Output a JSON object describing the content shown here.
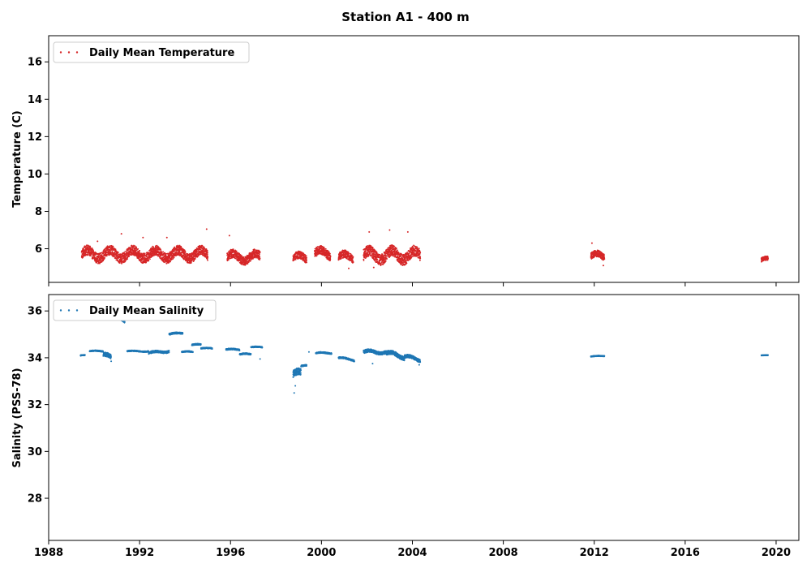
{
  "figure": {
    "title": "Station A1 - 400 m"
  },
  "chart_data": [
    {
      "type": "scatter",
      "id": "temperature",
      "ylabel": "Temperature (C)",
      "xlabel": "",
      "xlim": [
        1988.0,
        2021.0
      ],
      "ylim": [
        4.2,
        17.4
      ],
      "xticks": [
        1988,
        1992,
        1996,
        2000,
        2004,
        2008,
        2012,
        2016,
        2020
      ],
      "yticks": [
        6,
        8,
        10,
        12,
        14,
        16
      ],
      "show_xtick_labels": false,
      "grid": false,
      "legend": {
        "position": "upper-left",
        "entries": [
          "Daily Mean Temperature"
        ]
      },
      "series": [
        {
          "name": "Daily Mean Temperature",
          "color": "#d62728",
          "marker": "dot",
          "segments": [
            {
              "start": 1989.45,
              "end": 1995.0,
              "base": 5.7,
              "amp": 0.45,
              "slope": 0.0
            },
            {
              "start": 1995.85,
              "end": 1997.3,
              "base": 5.55,
              "amp": 0.4,
              "slope": 0.0
            },
            {
              "start": 1998.75,
              "end": 1999.35,
              "base": 5.5,
              "amp": 0.35,
              "slope": 0.0
            },
            {
              "start": 1999.7,
              "end": 2000.4,
              "base": 5.75,
              "amp": 0.4,
              "slope": 0.0
            },
            {
              "start": 2000.75,
              "end": 2001.4,
              "base": 5.55,
              "amp": 0.35,
              "slope": 0.0
            },
            {
              "start": 2001.85,
              "end": 2004.35,
              "base": 5.65,
              "amp": 0.5,
              "slope": 0.0
            },
            {
              "start": 2011.85,
              "end": 2012.45,
              "base": 5.6,
              "amp": 0.3,
              "slope": 0.0
            },
            {
              "start": 2019.35,
              "end": 2019.65,
              "base": 5.4,
              "amp": 0.2,
              "slope": 0.0
            }
          ],
          "extremes": [
            [
              1990.15,
              6.4
            ],
            [
              1991.2,
              6.8
            ],
            [
              1992.15,
              6.6
            ],
            [
              1993.2,
              6.6
            ],
            [
              1994.95,
              7.05
            ],
            [
              1995.95,
              6.7
            ],
            [
              2001.2,
              4.95
            ],
            [
              2002.1,
              6.9
            ],
            [
              2002.3,
              5.0
            ],
            [
              2003.0,
              7.0
            ],
            [
              2003.8,
              6.9
            ],
            [
              2011.9,
              6.3
            ],
            [
              2012.4,
              5.1
            ]
          ]
        }
      ]
    },
    {
      "type": "scatter",
      "id": "salinity",
      "ylabel": "Salinity (PSS-78)",
      "xlabel": "",
      "xlim": [
        1988.0,
        2021.0
      ],
      "ylim": [
        26.2,
        36.7
      ],
      "xticks": [
        1988,
        1992,
        1996,
        2000,
        2004,
        2008,
        2012,
        2016,
        2020
      ],
      "xtick_labels": [
        "1988",
        "1992",
        "1996",
        "2000",
        "2004",
        "2008",
        "2012",
        "2016",
        "2020"
      ],
      "yticks": [
        28,
        30,
        32,
        34,
        36
      ],
      "show_xtick_labels": true,
      "grid": false,
      "legend": {
        "position": "upper-left",
        "entries": [
          "Daily Mean Salinity"
        ]
      },
      "series": [
        {
          "name": "Daily Mean Salinity",
          "color": "#1f77b4",
          "marker": "dot",
          "segments": [
            {
              "start": 1989.4,
              "end": 1989.6,
              "base": 34.1,
              "amp": 0.03,
              "slope": 0.0
            },
            {
              "start": 1989.8,
              "end": 1990.4,
              "base": 34.28,
              "amp": 0.04,
              "slope": 0.0
            },
            {
              "start": 1990.4,
              "end": 1990.75,
              "base": 34.15,
              "amp": 0.15,
              "slope": -0.5
            },
            {
              "start": 1990.95,
              "end": 1991.35,
              "base": 35.75,
              "amp": 0.12,
              "slope": -0.6
            },
            {
              "start": 1991.45,
              "end": 1992.4,
              "base": 34.28,
              "amp": 0.04,
              "slope": 0.0
            },
            {
              "start": 1992.4,
              "end": 1993.3,
              "base": 34.2,
              "amp": 0.08,
              "slope": 0.1
            },
            {
              "start": 1993.3,
              "end": 1993.9,
              "base": 35.0,
              "amp": 0.06,
              "slope": 0.1
            },
            {
              "start": 1993.85,
              "end": 1994.35,
              "base": 34.25,
              "amp": 0.04,
              "slope": 0.0
            },
            {
              "start": 1994.3,
              "end": 1994.7,
              "base": 34.55,
              "amp": 0.05,
              "slope": 0.0
            },
            {
              "start": 1994.7,
              "end": 1995.2,
              "base": 34.4,
              "amp": 0.04,
              "slope": 0.0
            },
            {
              "start": 1995.8,
              "end": 1996.4,
              "base": 34.35,
              "amp": 0.05,
              "slope": 0.0
            },
            {
              "start": 1996.4,
              "end": 1996.9,
              "base": 34.15,
              "amp": 0.05,
              "slope": 0.0
            },
            {
              "start": 1996.9,
              "end": 1997.4,
              "base": 34.45,
              "amp": 0.04,
              "slope": 0.0
            },
            {
              "start": 1998.75,
              "end": 1999.1,
              "base": 33.3,
              "amp": 0.25,
              "slope": 0.0
            },
            {
              "start": 1999.1,
              "end": 1999.35,
              "base": 33.65,
              "amp": 0.05,
              "slope": 0.0
            },
            {
              "start": 1999.75,
              "end": 2000.45,
              "base": 34.2,
              "amp": 0.05,
              "slope": 0.0
            },
            {
              "start": 2000.75,
              "end": 2001.45,
              "base": 34.0,
              "amp": 0.06,
              "slope": -0.15
            },
            {
              "start": 2001.85,
              "end": 2002.85,
              "base": 34.25,
              "amp": 0.12,
              "slope": 0.0
            },
            {
              "start": 2002.85,
              "end": 2003.65,
              "base": 34.2,
              "amp": 0.15,
              "slope": -0.2
            },
            {
              "start": 2003.65,
              "end": 2004.35,
              "base": 34.05,
              "amp": 0.12,
              "slope": -0.2
            },
            {
              "start": 2011.85,
              "end": 2012.45,
              "base": 34.05,
              "amp": 0.03,
              "slope": 0.05
            },
            {
              "start": 2019.35,
              "end": 2019.65,
              "base": 34.1,
              "amp": 0.02,
              "slope": 0.0
            }
          ],
          "extremes": [
            [
              1998.8,
              32.5
            ],
            [
              1998.85,
              32.8
            ],
            [
              1999.45,
              34.25
            ],
            [
              1997.3,
              33.95
            ],
            [
              2002.25,
              33.75
            ],
            [
              1990.75,
              33.85
            ],
            [
              2004.3,
              33.7
            ]
          ]
        }
      ]
    }
  ]
}
